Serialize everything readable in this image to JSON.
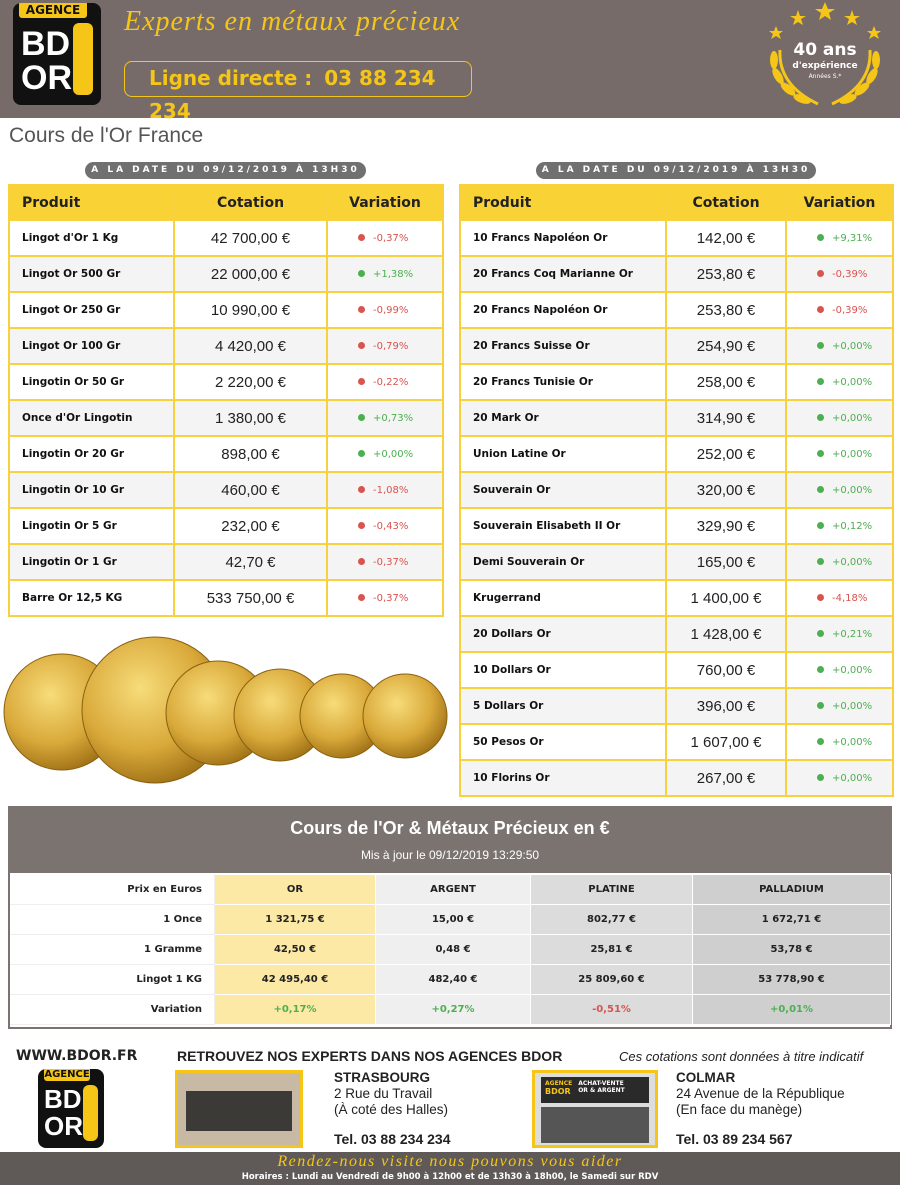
{
  "header": {
    "logo": {
      "top": "AGENCE",
      "line1": "BD",
      "line2": "OR"
    },
    "tagline": "Experts en métaux précieux",
    "phone_label": "Ligne directe :",
    "phone": "03 88 234 234",
    "badge": {
      "years": "40 ans",
      "text": "d'expérience",
      "small": "Années S.*"
    }
  },
  "title": "Cours de l'Or France",
  "left_table": {
    "date": "A LA DATE DU 09/12/2019 À 13H30",
    "headers": [
      "Produit",
      "Cotation",
      "Variation"
    ],
    "rows": [
      [
        "Lingot d'Or 1 Kg",
        "42 700,00 €",
        "-0,37%"
      ],
      [
        "Lingot Or 500 Gr",
        "22 000,00 €",
        "+1,38%"
      ],
      [
        "Lingot Or 250 Gr",
        "10 990,00 €",
        "-0,99%"
      ],
      [
        "Lingot Or 100 Gr",
        "4 420,00 €",
        "-0,79%"
      ],
      [
        "Lingotin Or 50 Gr",
        "2 220,00 €",
        "-0,22%"
      ],
      [
        "Once d'Or Lingotin",
        "1 380,00 €",
        "+0,73%"
      ],
      [
        "Lingotin Or 20 Gr",
        "898,00 €",
        "+0,00%"
      ],
      [
        "Lingotin Or 10 Gr",
        "460,00 €",
        "-1,08%"
      ],
      [
        "Lingotin Or 5 Gr",
        "232,00 €",
        "-0,43%"
      ],
      [
        "Lingotin Or 1 Gr",
        "42,70 €",
        "-0,37%"
      ],
      [
        "Barre Or 12,5 KG",
        "533 750,00 €",
        "-0,37%"
      ]
    ]
  },
  "right_table": {
    "date": "A LA DATE DU 09/12/2019 À 13H30",
    "headers": [
      "Produit",
      "Cotation",
      "Variation"
    ],
    "rows": [
      [
        "10 Francs Napoléon Or",
        "142,00 €",
        "+9,31%"
      ],
      [
        "20 Francs Coq Marianne Or",
        "253,80 €",
        "-0,39%"
      ],
      [
        "20 Francs Napoléon Or",
        "253,80 €",
        "-0,39%"
      ],
      [
        "20 Francs Suisse Or",
        "254,90 €",
        "+0,00%"
      ],
      [
        "20 Francs Tunisie Or",
        "258,00 €",
        "+0,00%"
      ],
      [
        "20 Mark Or",
        "314,90 €",
        "+0,00%"
      ],
      [
        "Union Latine Or",
        "252,00 €",
        "+0,00%"
      ],
      [
        "Souverain Or",
        "320,00 €",
        "+0,00%"
      ],
      [
        "Souverain Elisabeth II Or",
        "329,90 €",
        "+0,12%"
      ],
      [
        "Demi Souverain Or",
        "165,00 €",
        "+0,00%"
      ],
      [
        "Krugerrand",
        "1 400,00 €",
        "-4,18%"
      ],
      [
        "20 Dollars Or",
        "1 428,00 €",
        "+0,21%"
      ],
      [
        "10 Dollars Or",
        "760,00 €",
        "+0,00%"
      ],
      [
        "5 Dollars Or",
        "396,00 €",
        "+0,00%"
      ],
      [
        "50 Pesos Or",
        "1 607,00 €",
        "+0,00%"
      ],
      [
        "10 Florins Or",
        "267,00 €",
        "+0,00%"
      ]
    ]
  },
  "metals": {
    "title": "Cours de l'Or & Métaux Précieux en €",
    "subtitle": "Mis à jour le 09/12/2019 13:29:50",
    "headers": [
      "Prix en Euros",
      "OR",
      "ARGENT",
      "PLATINE",
      "PALLADIUM"
    ],
    "rows": [
      [
        "1 Once",
        "1 321,75 €",
        "15,00 €",
        "802,77 €",
        "1 672,71 €"
      ],
      [
        "1 Gramme",
        "42,50 €",
        "0,48 €",
        "25,81 €",
        "53,78 €"
      ],
      [
        "Lingot 1 KG",
        "42 495,40 €",
        "482,40 €",
        "25 809,60 €",
        "53 778,90 €"
      ],
      [
        "Variation",
        "+0,17%",
        "+0,27%",
        "-0,51%",
        "+0,01%"
      ]
    ]
  },
  "footer": {
    "website": "WWW.BDOR.FR",
    "heading": "RETROUVEZ NOS EXPERTS DANS NOS AGENCES BDOR",
    "disclaimer": "Ces cotations sont données à titre indicatif",
    "agencies": [
      {
        "city": "STRASBOURG",
        "address": [
          "2 Rue du Travail",
          "(À coté des Halles)"
        ],
        "phone": "Tel. 03 88 234 234"
      },
      {
        "city": "COLMAR",
        "address": [
          "24 Avenue de la République",
          "(En face du manège)"
        ],
        "phone": "Tel. 03 89 234 567"
      }
    ],
    "sign": [
      "AGENCE",
      "BDOR",
      "ACHAT-VENTE",
      "OR & ARGENT"
    ],
    "slogan": "Rendez-nous visite nous pouvons vous aider",
    "hours": "Horaires : Lundi au Vendredi de 9h00 à 12h00 et de 13h30 à 18h00, le Samedi sur RDV"
  }
}
